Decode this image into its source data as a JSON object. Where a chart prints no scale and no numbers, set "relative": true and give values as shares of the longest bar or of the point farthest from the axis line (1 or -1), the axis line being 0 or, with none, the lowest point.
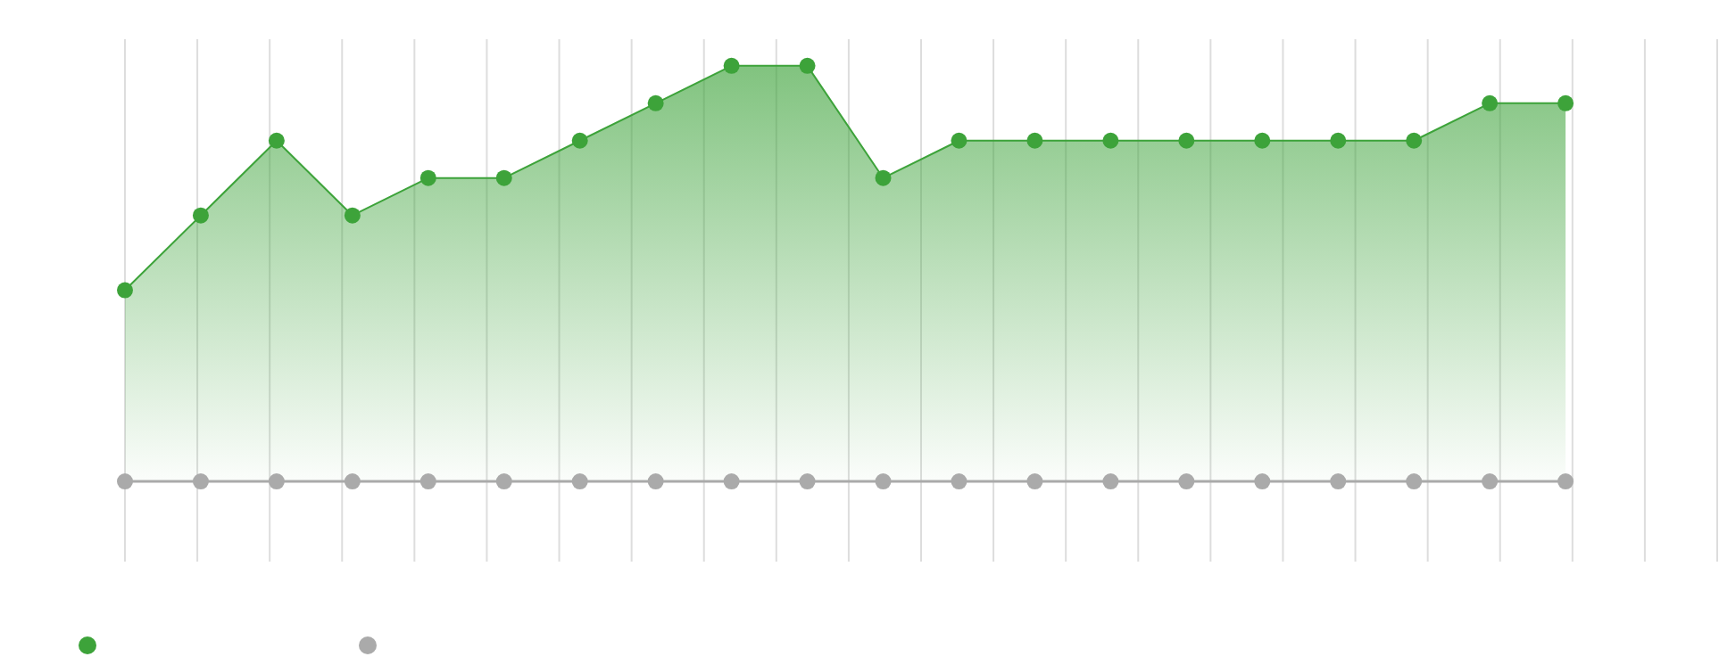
{
  "chart_data": {
    "type": "area",
    "relative": true,
    "categories": [
      null,
      null,
      null,
      null,
      null,
      null,
      null,
      null,
      null,
      null,
      null,
      null,
      null,
      null,
      null,
      null,
      null,
      null,
      null,
      null,
      null,
      null
    ],
    "series": [
      {
        "color": "#3da33a",
        "values": [
          0.46,
          0.64,
          0.82,
          0.64,
          0.73,
          0.73,
          0.82,
          0.91,
          1,
          1,
          0.73,
          0.82,
          0.82,
          0.82,
          0.82,
          0.82,
          0.82,
          0.82,
          0.91,
          0.91,
          null,
          null
        ]
      },
      {
        "type": "line",
        "color": "#aaaaaa",
        "values": [
          0,
          0,
          0,
          0,
          0,
          0,
          0,
          0,
          0,
          0,
          0,
          0,
          0,
          0,
          0,
          0,
          0,
          0,
          0,
          0,
          null,
          null
        ]
      }
    ],
    "grid": "x",
    "marker": "circle"
  }
}
